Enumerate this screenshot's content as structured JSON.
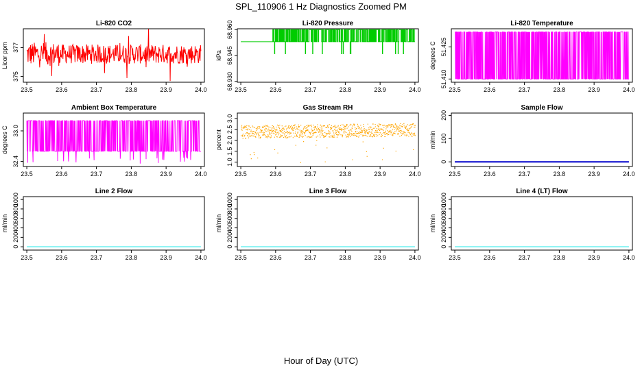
{
  "title": "SPL_110906  1 Hz Diagnostics Zoomed PM",
  "xlabel": "Hour of Day (UTC)",
  "chart_data": [
    {
      "type": "line",
      "title": "Li-820 CO2",
      "ylabel": "Licor ppm",
      "color": "#ff0000",
      "xlim": [
        23.49,
        24.01
      ],
      "xticks": [
        23.5,
        23.6,
        23.7,
        23.8,
        23.9,
        24.0
      ],
      "ylim": [
        374.6,
        378.3
      ],
      "yticks": [
        375,
        377
      ],
      "ytick_labels": [
        "375",
        "377"
      ],
      "style": "noise",
      "center": 376.55,
      "amp": 0.75
    },
    {
      "type": "line",
      "title": "Li-820 Pressure",
      "ylabel": "kPa",
      "color": "#00cc00",
      "xlim": [
        23.49,
        24.01
      ],
      "xticks": [
        23.5,
        23.6,
        23.7,
        23.8,
        23.9,
        24.0
      ],
      "ylim": [
        68.9295,
        68.9605
      ],
      "yticks": [
        68.93,
        68.945,
        68.96
      ],
      "ytick_labels": [
        "68.930",
        "68.945",
        "68.960"
      ],
      "style": "steps",
      "base": 68.953,
      "hi": 68.96,
      "lo": 68.946
    },
    {
      "type": "line",
      "title": "Li-820 Temperature",
      "ylabel": "degrees C",
      "color": "#ff00ff",
      "xlim": [
        23.49,
        24.01
      ],
      "xticks": [
        23.5,
        23.6,
        23.7,
        23.8,
        23.9,
        24.0
      ],
      "ylim": [
        51.4085,
        51.4335
      ],
      "yticks": [
        51.41,
        51.425
      ],
      "ytick_labels": [
        "51.410",
        "51.425"
      ],
      "style": "binary",
      "lo": 51.41,
      "hi": 51.432
    },
    {
      "type": "line",
      "title": "Ambient Box Temperature",
      "ylabel": "degrees C",
      "color": "#ff00ff",
      "xlim": [
        23.49,
        24.01
      ],
      "xticks": [
        23.5,
        23.6,
        23.7,
        23.8,
        23.9,
        24.0
      ],
      "ylim": [
        32.3,
        33.35
      ],
      "yticks": [
        32.4,
        33.0
      ],
      "ytick_labels": [
        "32.4",
        "33.0"
      ],
      "style": "band",
      "lo": 32.6,
      "hi": 33.2
    },
    {
      "type": "line",
      "title": "Gas Stream RH",
      "ylabel": "percent",
      "color": "#ffa500",
      "xlim": [
        23.49,
        24.01
      ],
      "xticks": [
        23.5,
        23.6,
        23.7,
        23.8,
        23.9,
        24.0
      ],
      "ylim": [
        0.8,
        3.25
      ],
      "yticks": [
        1.0,
        1.5,
        2.0,
        2.5,
        3.0
      ],
      "ytick_labels": [
        "1.0",
        "1.5",
        "2.0",
        "2.5",
        "3.0"
      ],
      "style": "dots",
      "center": 2.45,
      "amp": 0.3
    },
    {
      "type": "line",
      "title": "Sample Flow",
      "ylabel": "ml/min",
      "color": "#0000cc",
      "xlim": [
        23.49,
        24.01
      ],
      "xticks": [
        23.5,
        23.6,
        23.7,
        23.8,
        23.9,
        24.0
      ],
      "ylim": [
        -20,
        210
      ],
      "yticks": [
        0,
        100,
        200
      ],
      "ytick_labels": [
        "0",
        "100",
        "200"
      ],
      "style": "flat",
      "value": 0
    },
    {
      "type": "line",
      "title": "Line 2 Flow",
      "ylabel": "ml/min",
      "color": "#00e5e5",
      "xlim": [
        23.49,
        24.01
      ],
      "xticks": [
        23.5,
        23.6,
        23.7,
        23.8,
        23.9,
        24.0
      ],
      "ylim": [
        -70,
        1060
      ],
      "yticks": [
        0,
        200,
        400,
        600,
        800,
        1000
      ],
      "ytick_labels": [
        "0",
        "200",
        "400",
        "600",
        "800",
        "1000"
      ],
      "style": "flat",
      "value": 0
    },
    {
      "type": "line",
      "title": "Line 3 Flow",
      "ylabel": "ml/min",
      "color": "#00e5e5",
      "xlim": [
        23.49,
        24.01
      ],
      "xticks": [
        23.5,
        23.6,
        23.7,
        23.8,
        23.9,
        24.0
      ],
      "ylim": [
        -70,
        1060
      ],
      "yticks": [
        0,
        200,
        400,
        600,
        800,
        1000
      ],
      "ytick_labels": [
        "0",
        "200",
        "400",
        "600",
        "800",
        "1000"
      ],
      "style": "flat",
      "value": 0
    },
    {
      "type": "line",
      "title": "Line 4 (LT) Flow",
      "ylabel": "ml/min",
      "color": "#00e5e5",
      "xlim": [
        23.49,
        24.01
      ],
      "xticks": [
        23.5,
        23.6,
        23.7,
        23.8,
        23.9,
        24.0
      ],
      "ylim": [
        -70,
        1060
      ],
      "yticks": [
        0,
        200,
        400,
        600,
        800,
        1000
      ],
      "ytick_labels": [
        "0",
        "200",
        "400",
        "600",
        "800",
        "1000"
      ],
      "style": "flat",
      "value": 0
    }
  ]
}
